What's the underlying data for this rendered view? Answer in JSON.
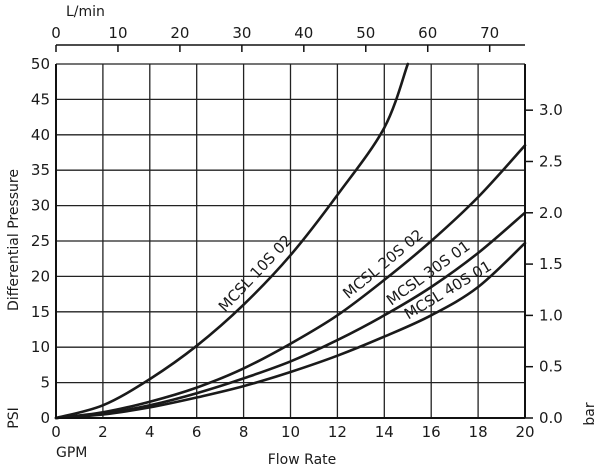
{
  "chart_data": {
    "type": "line",
    "xlabel": "Flow Rate",
    "x_unit": "GPM",
    "x_top_unit": "L/min",
    "ylabel": "Differential Pressure",
    "y_unit": "PSI",
    "y_right_unit": "bar",
    "xlim": [
      0,
      20
    ],
    "ylim": [
      0,
      50
    ],
    "x_top_lim": [
      0,
      75.7
    ],
    "y_right_lim": [
      0,
      3.45
    ],
    "grid": true,
    "x_ticks": [
      "0",
      "2",
      "4",
      "6",
      "8",
      "10",
      "12",
      "14",
      "16",
      "18",
      "20"
    ],
    "y_ticks": [
      "0",
      "5",
      "10",
      "15",
      "20",
      "25",
      "30",
      "35",
      "40",
      "45",
      "50"
    ],
    "x_top_ticks": [
      "0",
      "10",
      "20",
      "30",
      "40",
      "50",
      "60",
      "70"
    ],
    "y_right_ticks": [
      "0.0",
      "0.5",
      "1.0",
      "1.5",
      "2.0",
      "2.5",
      "3.0"
    ],
    "series": [
      {
        "name": "MCSL 10S 02",
        "x": [
          0,
          2,
          4,
          6,
          8,
          10,
          12,
          14,
          15
        ],
        "y": [
          0,
          1.8,
          5.5,
          10.2,
          16.0,
          23.0,
          31.5,
          41.0,
          50.0
        ]
      },
      {
        "name": "MCSL 20S 02",
        "x": [
          0,
          2,
          4,
          6,
          8,
          10,
          12,
          14,
          16,
          18,
          20
        ],
        "y": [
          0,
          0.8,
          2.3,
          4.3,
          7.0,
          10.5,
          14.5,
          19.5,
          25.0,
          31.2,
          38.5
        ]
      },
      {
        "name": "MCSL 30S 01",
        "x": [
          0,
          2,
          4,
          6,
          8,
          10,
          12,
          14,
          16,
          18,
          20
        ],
        "y": [
          0,
          0.6,
          1.8,
          3.5,
          5.6,
          8.0,
          11.0,
          14.5,
          18.5,
          23.3,
          29.0
        ]
      },
      {
        "name": "MCSL 40S 01",
        "x": [
          0,
          2,
          4,
          6,
          8,
          10,
          12,
          14,
          16,
          18,
          20
        ],
        "y": [
          0,
          0.5,
          1.5,
          2.9,
          4.5,
          6.5,
          8.8,
          11.5,
          14.5,
          18.5,
          24.7
        ]
      }
    ]
  }
}
